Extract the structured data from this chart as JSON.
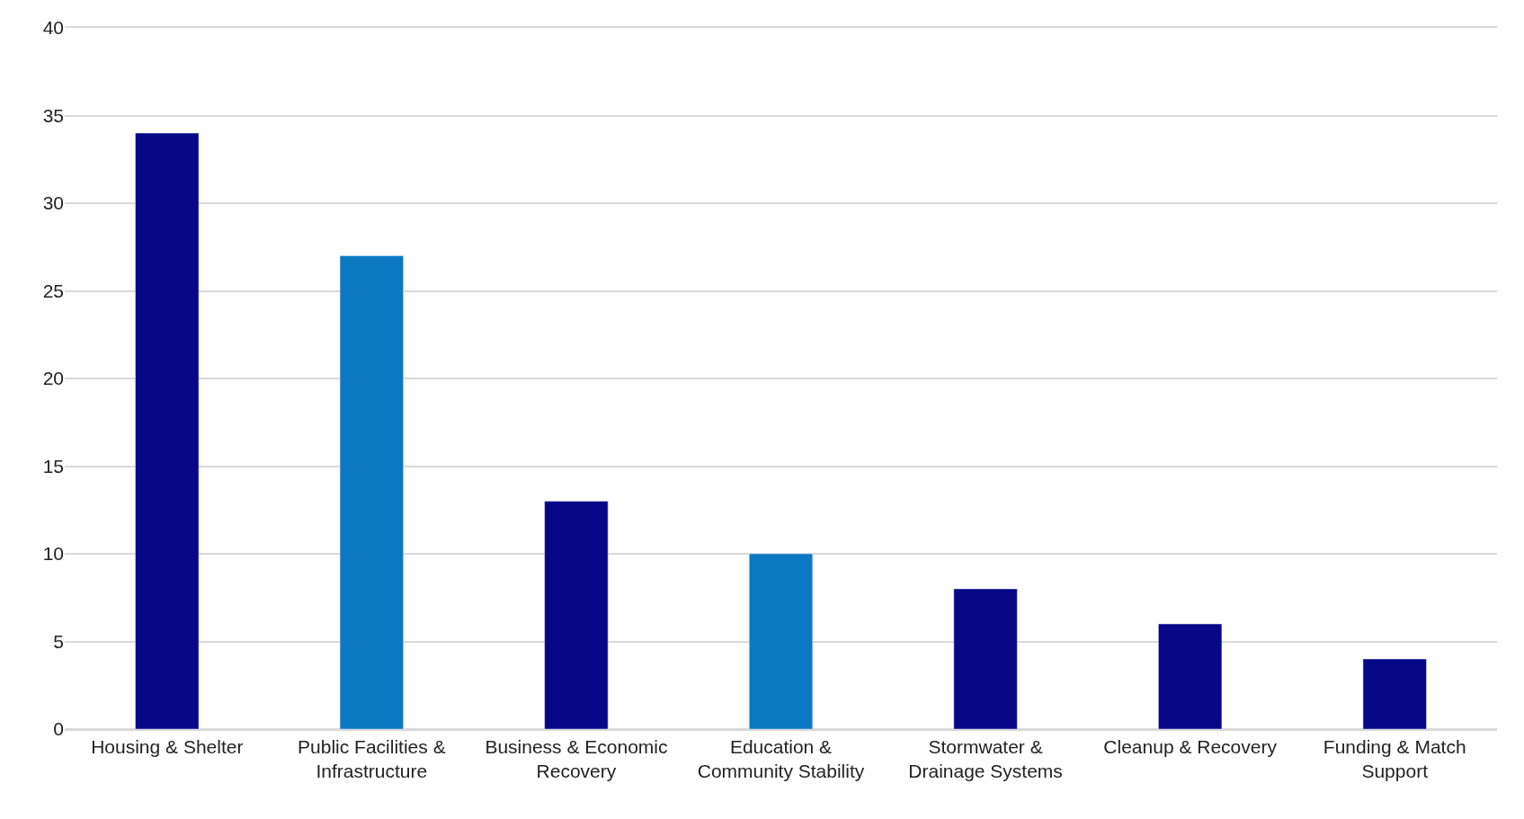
{
  "chart_data": {
    "type": "bar",
    "categories": [
      "Housing & Shelter",
      "Public Facilities & Infrastructure",
      "Business & Economic Recovery",
      "Education & Community Stability",
      "Stormwater & Drainage Systems",
      "Cleanup & Recovery",
      "Funding & Match Support"
    ],
    "values": [
      34,
      27,
      13,
      10,
      8,
      6,
      4
    ],
    "colors": [
      "#070788",
      "#0b78c4",
      "#070788",
      "#0b78c4",
      "#070788",
      "#070788",
      "#070788"
    ],
    "ylim": [
      0,
      40
    ],
    "yticks": [
      0,
      5,
      10,
      15,
      20,
      25,
      30,
      35,
      40
    ],
    "grid": "y"
  }
}
